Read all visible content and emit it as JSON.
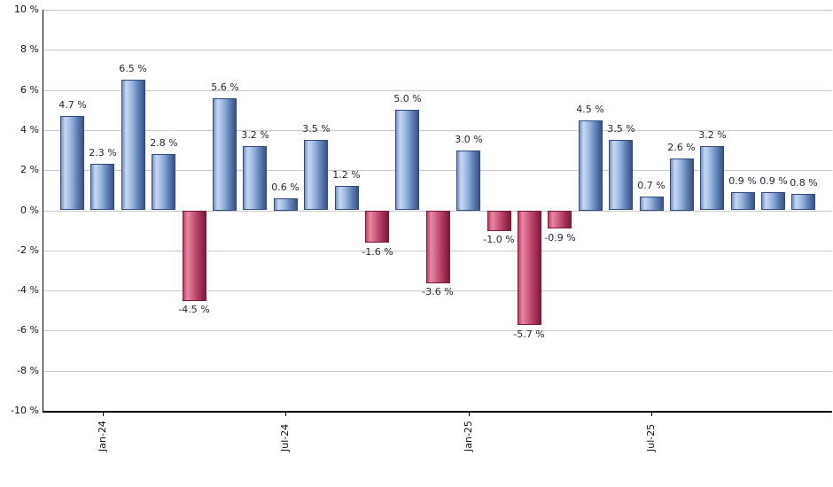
{
  "chart_data": {
    "type": "bar",
    "title": "",
    "xlabel": "",
    "ylabel": "",
    "ylim": [
      -10,
      10
    ],
    "grid": true,
    "legend": null,
    "values": [
      4.7,
      2.3,
      6.5,
      2.8,
      -4.5,
      5.6,
      3.2,
      0.6,
      3.5,
      1.2,
      -1.6,
      5.0,
      -3.6,
      3.0,
      -1.0,
      -5.7,
      -0.9,
      4.5,
      3.5,
      0.7,
      2.6,
      3.2,
      0.9,
      0.9,
      0.8
    ],
    "value_labels": [
      "4.7 %",
      "2.3 %",
      "6.5 %",
      "2.8 %",
      "-4.5 %",
      "5.6 %",
      "3.2 %",
      "0.6 %",
      "3.5 %",
      "1.2 %",
      "-1.6 %",
      "5.0 %",
      "-3.6 %",
      "3.0 %",
      "-1.0 %",
      "-5.7 %",
      "-0.9 %",
      "4.5 %",
      "3.5 %",
      "0.7 %",
      "2.6 %",
      "3.2 %",
      "0.9 %",
      "0.9 %",
      "0.8 %"
    ],
    "x_ticks": [
      {
        "index": 1,
        "label": "Jan-24"
      },
      {
        "index": 7,
        "label": "Jul-24"
      },
      {
        "index": 13,
        "label": "Jan-25"
      },
      {
        "index": 19,
        "label": "Jul-25"
      }
    ],
    "y_tick_values": [
      10,
      8,
      6,
      4,
      2,
      0,
      -2,
      -4,
      -6,
      -8,
      -10
    ],
    "y_tick_labels": [
      "10 %",
      "8 %",
      "6 %",
      "4 %",
      "2 %",
      "0 %",
      "-2 %",
      "-4 %",
      "-6 %",
      "-8 %",
      "-10 %"
    ],
    "colors": {
      "positive_bar": "#7b9bd0",
      "positive_border": "#2f4a7d",
      "negative_bar": "#c64a6e",
      "negative_border": "#7c1c3b",
      "gridline": "#c9c9c9",
      "axis": "#000000",
      "label_text": "#26263a",
      "background": "#ffffff"
    }
  }
}
